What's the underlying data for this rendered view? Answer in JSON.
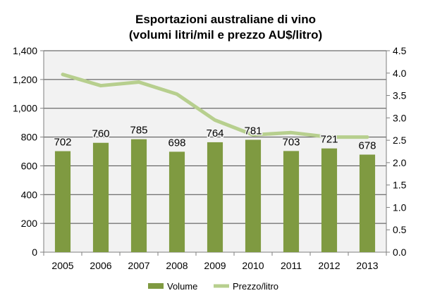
{
  "chart_data": {
    "type": "bar",
    "title": "Esportazioni australiane di vino",
    "subtitle": "(volumi litri/mil e prezzo AU$/litro)",
    "categories": [
      "2005",
      "2006",
      "2007",
      "2008",
      "2009",
      "2010",
      "2011",
      "2012",
      "2013"
    ],
    "series": [
      {
        "name": "Volume",
        "type": "bar",
        "axis": "left",
        "color": "#7f9a41",
        "values": [
          702,
          760,
          785,
          698,
          764,
          781,
          703,
          721,
          678
        ],
        "data_labels": [
          "702",
          "760",
          "785",
          "698",
          "764",
          "781",
          "703",
          "721",
          "678"
        ]
      },
      {
        "name": "Prezzo/litro",
        "type": "line",
        "axis": "right",
        "color": "#b7cf8e",
        "values": [
          3.97,
          3.72,
          3.8,
          3.53,
          2.95,
          2.62,
          2.67,
          2.57,
          2.57
        ]
      }
    ],
    "y_left": {
      "min": 0,
      "max": 1400,
      "ticks": [
        0,
        200,
        400,
        600,
        800,
        1000,
        1200,
        1400
      ],
      "tick_labels": [
        "0",
        "200",
        "400",
        "600",
        "800",
        "1,000",
        "1,200",
        "1,400"
      ]
    },
    "y_right": {
      "min": 0,
      "max": 4.5,
      "ticks": [
        0,
        0.5,
        1,
        1.5,
        2,
        2.5,
        3,
        3.5,
        4,
        4.5
      ],
      "tick_labels": [
        "0.0",
        "0.5",
        "1.0",
        "1.5",
        "2.0",
        "2.5",
        "3.0",
        "3.5",
        "4.0",
        "4.5"
      ]
    },
    "grid": true,
    "legend_position": "bottom",
    "plot_background": "#f2f2f2",
    "gridline_color": "#4a4a4a"
  }
}
